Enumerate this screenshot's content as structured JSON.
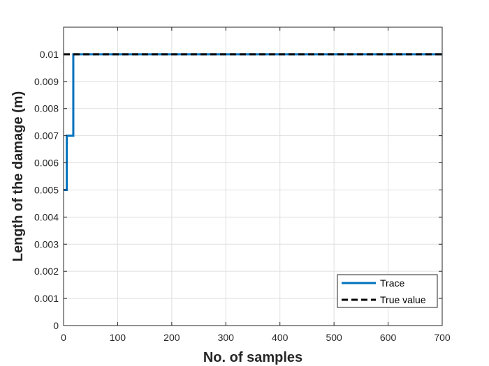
{
  "chart_data": {
    "type": "line",
    "title": "",
    "xlabel": "No. of samples",
    "ylabel": "Length of the damage (m)",
    "xlim": [
      0,
      700
    ],
    "ylim": [
      0,
      0.011
    ],
    "x_ticks": [
      0,
      100,
      200,
      300,
      400,
      500,
      600,
      700
    ],
    "y_ticks": [
      0,
      0.001,
      0.002,
      0.003,
      0.004,
      0.005,
      0.006,
      0.007,
      0.008,
      0.009,
      0.01
    ],
    "x_tick_labels": [
      "0",
      "100",
      "200",
      "300",
      "400",
      "500",
      "600",
      "700"
    ],
    "y_tick_labels": [
      "0",
      "0.001",
      "0.002",
      "0.003",
      "0.004",
      "0.005",
      "0.006",
      "0.007",
      "0.008",
      "0.009",
      "0.01"
    ],
    "grid": true,
    "legend_position": "bottom-right",
    "series": [
      {
        "name": "Trace",
        "color": "#0072BD",
        "style": "solid",
        "x": [
          0,
          6,
          6,
          18,
          18,
          700
        ],
        "y": [
          0.005,
          0.005,
          0.007,
          0.007,
          0.01,
          0.01
        ]
      },
      {
        "name": "True value",
        "color": "#000000",
        "style": "dashed",
        "x": [
          0,
          700
        ],
        "y": [
          0.01,
          0.01
        ]
      }
    ]
  }
}
